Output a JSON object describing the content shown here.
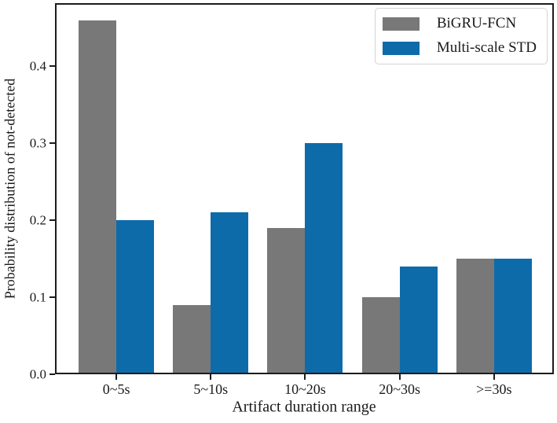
{
  "figure": {
    "background": "#ffffff"
  },
  "colors": {
    "axis": "#1c1c1c",
    "text": "#1a1a1a",
    "legend_border": "#d4d4d4"
  },
  "chart_data": {
    "type": "bar",
    "title": "",
    "xlabel": "Artifact duration range",
    "ylabel": "Probability distribution of not-detected",
    "categories": [
      "0~5s",
      "5~10s",
      "10~20s",
      "20~30s",
      ">=30s"
    ],
    "series": [
      {
        "name": "BiGRU-FCN",
        "color": "#787878",
        "values": [
          0.46,
          0.09,
          0.19,
          0.1,
          0.15
        ]
      },
      {
        "name": "Multi-scale STD",
        "color": "#0e6baa",
        "values": [
          0.2,
          0.21,
          0.3,
          0.14,
          0.15
        ]
      }
    ],
    "ylim": [
      0,
      0.482
    ],
    "yticks": [
      0.0,
      0.1,
      0.2,
      0.3,
      0.4
    ],
    "ytick_format_decimals": 1,
    "grid": false,
    "legend_position": "upper right"
  }
}
